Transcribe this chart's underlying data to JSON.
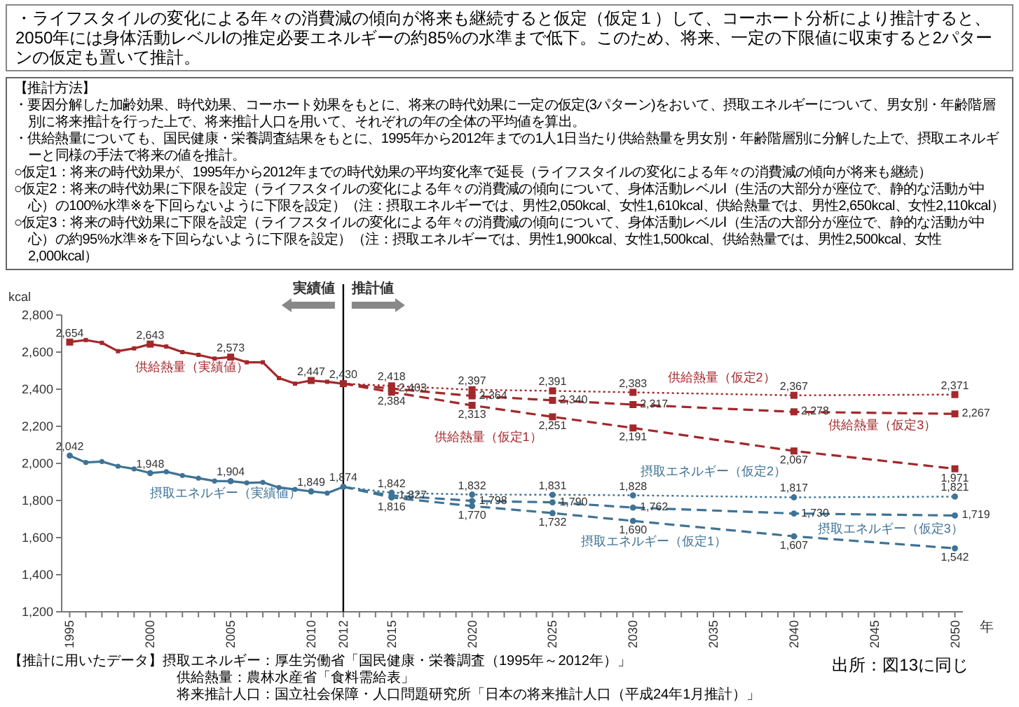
{
  "chart_data": {
    "type": "line",
    "subtitle": "・ライフスタイルの変化による年々の消費減の傾向が将来も継続すると仮定（仮定１）して、コーホート分析により推計すると、2050年には身体活動レベルⅠの推定必要エネルギーの約85%の水準まで低下。このため、将来、一定の下限値に収束すると2パターンの仮定も置いて推計。",
    "xlabel": "年",
    "ylabel": "kcal",
    "xlim": [
      1994.5,
      2050.5
    ],
    "xticks": [
      1995,
      {
        "value": 1996,
        "label": null
      },
      {
        "value": 1997,
        "label": null
      },
      {
        "value": 1998,
        "label": null
      },
      {
        "value": 1999,
        "label": null
      },
      2000,
      {
        "value": 2001,
        "label": null
      },
      {
        "value": 2002,
        "label": null
      },
      {
        "value": 2003,
        "label": null
      },
      {
        "value": 2004,
        "label": null
      },
      2005,
      {
        "value": 2006,
        "label": null
      },
      {
        "value": 2007,
        "label": null
      },
      {
        "value": 2008,
        "label": null
      },
      {
        "value": 2009,
        "label": null
      },
      2010,
      {
        "value": 2011,
        "label": null
      },
      2012,
      {
        "value": 2013,
        "label": null
      },
      {
        "value": 2014,
        "label": null
      },
      2015,
      {
        "value": 2016,
        "label": null
      },
      {
        "value": 2017,
        "label": null
      },
      {
        "value": 2018,
        "label": null
      },
      {
        "value": 2019,
        "label": null
      },
      2020,
      {
        "value": 2021,
        "label": null
      },
      {
        "value": 2022,
        "label": null
      },
      {
        "value": 2023,
        "label": null
      },
      {
        "value": 2024,
        "label": null
      },
      2025,
      {
        "value": 2026,
        "label": null
      },
      {
        "value": 2027,
        "label": null
      },
      {
        "value": 2028,
        "label": null
      },
      {
        "value": 2029,
        "label": null
      },
      2030,
      {
        "value": 2031,
        "label": null
      },
      {
        "value": 2032,
        "label": null
      },
      {
        "value": 2033,
        "label": null
      },
      {
        "value": 2034,
        "label": null
      },
      2035,
      {
        "value": 2036,
        "label": null
      },
      {
        "value": 2037,
        "label": null
      },
      {
        "value": 2038,
        "label": null
      },
      {
        "value": 2039,
        "label": null
      },
      2040,
      {
        "value": 2041,
        "label": null
      },
      {
        "value": 2042,
        "label": null
      },
      {
        "value": 2043,
        "label": null
      },
      {
        "value": 2044,
        "label": null
      },
      2045,
      {
        "value": 2046,
        "label": null
      },
      {
        "value": 2047,
        "label": null
      },
      {
        "value": 2048,
        "label": null
      },
      {
        "value": 2049,
        "label": null
      },
      2050
    ],
    "ylim": [
      1200,
      2800
    ],
    "yticks": [
      {
        "value": 1200,
        "label": "1,200"
      },
      {
        "value": 1400,
        "label": "1,400"
      },
      {
        "value": 1600,
        "label": "1,600"
      },
      {
        "value": 1800,
        "label": "1,800"
      },
      {
        "value": 2000,
        "label": "2,000"
      },
      {
        "value": 2200,
        "label": "2,200"
      },
      {
        "value": 2400,
        "label": "2,400"
      },
      {
        "value": 2600,
        "label": "2,600"
      },
      {
        "value": 2800,
        "label": "2,800"
      }
    ],
    "grid": false,
    "ref_lines": [
      {
        "axis": "x",
        "value": 2012,
        "color": "#000000",
        "line_style": "solid"
      }
    ],
    "annotations": [
      "【推計方法】",
      "・要因分解した加齢効果、時代効果、コーホート効果をもとに、将来の時代効果に一定の仮定(3パターン)をおいて、摂取エネルギーについて、男女別・年齢階層別に将来推計を行った上で、将来推計人口を用いて、それぞれの年の全体の平均値を算出。",
      "・供給熱量についても、国民健康・栄養調査結果をもとに、1995年から2012年までの1人1日当たり供給熱量を男女別・年齢階層別に分解した上で、摂取エネルギーと同様の手法で将来の値を推計。",
      "○仮定1：将来の時代効果が、1995年から2012年までの時代効果の平均変化率で延長（ライフスタイルの変化による年々の消費減の傾向が将来も継続）",
      "○仮定2：将来の時代効果に下限を設定（ライフスタイルの変化による年々の消費減の傾向について、身体活動レベルⅠ（生活の大部分が座位で、静的な活動が中心）の100%水準※を下回らないように下限を設定）（注：摂取エネルギーでは、男性2,050kcal、女性1,610kcal、供給熱量では、男性2,650kcal、女性2,110kcal）",
      "○仮定3：将来の時代効果に下限を設定（ライフスタイルの変化による年々の消費減の傾向について、身体活動レベルⅠ（生活の大部分が座位で、静的な活動が中心）の約95%水準※を下回らないように下限を設定）（注：摂取エネルギーでは、男性1,900kcal、女性1,500kcal、供給熱量では、男性2,500kcal、女性2,000kcal）",
      "実績値",
      "推計値",
      "【推計に用いたデータ】摂取エネルギー：厚生労働省「国民健康・栄養調査（1995年～2012年）」",
      "供給熱量：農林水産省「食料需給表」",
      "将来推計人口：国立社会保障・人口問題研究所「日本の将来推計人口（平成24年1月推計）」",
      "出所：図13に同じ"
    ],
    "series": [
      {
        "name": "供給熱量（実績値）",
        "color": "#a3282b",
        "line_style": "solid",
        "marker": "square",
        "x": [
          1995,
          1996,
          1997,
          1998,
          1999,
          2000,
          2001,
          2002,
          2003,
          2004,
          2005,
          2006,
          2007,
          2008,
          2009,
          2010,
          2011,
          2012
        ],
        "values": [
          2654,
          2665,
          2650,
          2605,
          2620,
          2643,
          2630,
          2600,
          2585,
          2565,
          2573,
          2545,
          2545,
          2460,
          2430,
          2447,
          2440,
          2430
        ],
        "value_labels": [
          "2,654",
          null,
          null,
          null,
          null,
          "2,643",
          null,
          null,
          null,
          null,
          "2,573",
          null,
          null,
          null,
          null,
          "2,447",
          null,
          "2,430"
        ]
      },
      {
        "name": "供給熱量（仮定1）",
        "color": "#a3282b",
        "line_style": "dashed",
        "marker": "square",
        "x": [
          2012,
          2015,
          2020,
          2025,
          2030,
          2040,
          2050
        ],
        "values": [
          2430,
          2384,
          2313,
          2251,
          2191,
          2067,
          1971
        ],
        "value_labels": [
          null,
          "2,384",
          "2,313",
          "2,251",
          "2,191",
          "2,067",
          "1,971"
        ]
      },
      {
        "name": "供給熱量（仮定2）",
        "color": "#a3282b",
        "line_style": "dotted",
        "marker": "square",
        "x": [
          2012,
          2015,
          2020,
          2025,
          2030,
          2040,
          2050
        ],
        "values": [
          2430,
          2418,
          2397,
          2391,
          2383,
          2367,
          2371
        ],
        "value_labels": [
          null,
          "2,418",
          "2,397",
          "2,391",
          "2,383",
          "2,367",
          "2,371"
        ]
      },
      {
        "name": "供給熱量（仮定3）",
        "color": "#a3282b",
        "line_style": "dashed",
        "marker": "square",
        "x": [
          2012,
          2015,
          2020,
          2025,
          2030,
          2040,
          2050
        ],
        "values": [
          2430,
          2403,
          2364,
          2340,
          2317,
          2278,
          2267
        ],
        "value_labels": [
          null,
          "2,403",
          "2,364",
          "2,340",
          "2,317",
          "2,278",
          "2,267"
        ]
      },
      {
        "name": "摂取エネルギー（実績値）",
        "color": "#3f7396",
        "line_style": "solid",
        "marker": "circle",
        "x": [
          1995,
          1996,
          1997,
          1998,
          1999,
          2000,
          2001,
          2002,
          2003,
          2004,
          2005,
          2006,
          2007,
          2008,
          2009,
          2010,
          2011,
          2012
        ],
        "values": [
          2042,
          2005,
          2010,
          1985,
          1970,
          1948,
          1955,
          1935,
          1920,
          1905,
          1904,
          1895,
          1898,
          1870,
          1860,
          1849,
          1840,
          1874
        ],
        "value_labels": [
          "2,042",
          null,
          null,
          null,
          null,
          "1,948",
          null,
          null,
          null,
          null,
          "1,904",
          null,
          null,
          null,
          null,
          "1,849",
          null,
          "1,874"
        ]
      },
      {
        "name": "摂取エネルギー（仮定1）",
        "color": "#3f7396",
        "line_style": "dashed",
        "marker": "circle",
        "x": [
          2012,
          2015,
          2020,
          2025,
          2030,
          2040,
          2050
        ],
        "values": [
          1874,
          1816,
          1770,
          1732,
          1690,
          1607,
          1542
        ],
        "value_labels": [
          null,
          "1,816",
          "1,770",
          "1,732",
          "1,690",
          "1,607",
          "1,542"
        ]
      },
      {
        "name": "摂取エネルギー（仮定2）",
        "color": "#3f7396",
        "line_style": "dotted",
        "marker": "circle",
        "x": [
          2012,
          2015,
          2020,
          2025,
          2030,
          2040,
          2050
        ],
        "values": [
          1874,
          1842,
          1832,
          1831,
          1828,
          1817,
          1821
        ],
        "value_labels": [
          null,
          "1,842",
          "1,832",
          "1,831",
          "1,828",
          "1,817",
          "1,821"
        ]
      },
      {
        "name": "摂取エネルギー（仮定3）",
        "color": "#3f7396",
        "line_style": "dashed",
        "marker": "circle",
        "x": [
          2012,
          2015,
          2020,
          2025,
          2030,
          2040,
          2050
        ],
        "values": [
          1874,
          1827,
          1798,
          1790,
          1762,
          1730,
          1719
        ],
        "value_labels": [
          null,
          "1,827",
          "1,798",
          "1,790",
          "1,762",
          "1,730",
          "1,719"
        ]
      }
    ]
  }
}
